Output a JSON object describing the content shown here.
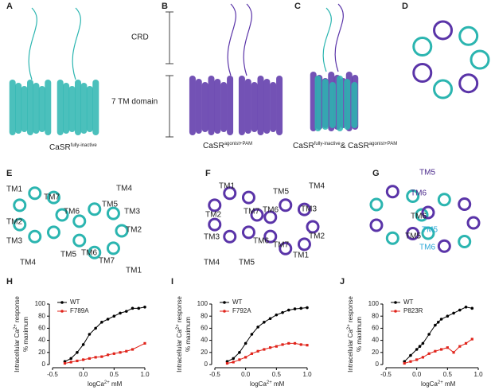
{
  "figure": {
    "panel_letters": [
      "A",
      "B",
      "C",
      "D",
      "E",
      "F",
      "G",
      "H",
      "I",
      "J"
    ],
    "panel_a": {
      "label_crd": "CRD",
      "label_tm": "7 TM domain",
      "caption": [
        "CaSR",
        "fully-inactive"
      ]
    },
    "panel_b": {
      "caption": [
        "CaSR",
        "agonist+PAM"
      ]
    },
    "panel_c": {
      "caption": [
        "CaSR",
        "fully-inactive",
        "& CaSR",
        "agonist+PAM"
      ]
    },
    "panel_e": {
      "labels": [
        "TM1",
        "TM7",
        "TM6",
        "TM5",
        "TM4",
        "TM3",
        "TM2",
        "TM3",
        "TM4",
        "TM5",
        "TM6",
        "TM2",
        "TM7",
        "TM1"
      ]
    },
    "panel_f": {
      "labels": [
        "TM1",
        "TM5",
        "TM4",
        "TM2",
        "TM7",
        "TM6",
        "TM3",
        "TM3",
        "TM6",
        "TM2",
        "TM7",
        "TM4",
        "TM5",
        "TM1"
      ]
    },
    "panel_g": {
      "labels": [
        "TM5",
        "TM6",
        "TM6",
        "TM5",
        "TM5",
        "TM6"
      ],
      "colors": [
        "#4b2a8c",
        "#4b2a8c",
        "#222222",
        "#222222",
        "#2aa7d6",
        "#2aa7d6"
      ]
    }
  },
  "chart_data": [
    {
      "type": "line",
      "ylabel": [
        "Intracellular Ca",
        "2+",
        " response",
        "% maximum"
      ],
      "xlabel": [
        "logCa",
        "2+",
        " mM"
      ],
      "xlim": [
        -0.5,
        1.0
      ],
      "xticks": [
        {
          "value": -0.5,
          "label": "-0.5"
        },
        {
          "value": 0,
          "label": "0.0"
        },
        {
          "value": 0.5,
          "label": "0.5"
        },
        {
          "value": 1,
          "label": "1.0"
        }
      ],
      "ylim": [
        0,
        100
      ],
      "yticks": [
        0,
        20,
        40,
        60,
        80,
        100
      ],
      "series": [
        {
          "name": "WT",
          "color": "#000000",
          "x": [
            -0.3,
            -0.2,
            -0.1,
            0,
            0.1,
            0.2,
            0.3,
            0.4,
            0.5,
            0.6,
            0.7,
            0.8,
            0.9,
            1.0
          ],
          "values": [
            5,
            10,
            20,
            33,
            50,
            60,
            70,
            75,
            80,
            85,
            88,
            93,
            93,
            95
          ]
        },
        {
          "name": "F789A",
          "color": "#e0241b",
          "x": [
            -0.3,
            -0.2,
            -0.1,
            0,
            0.1,
            0.2,
            0.3,
            0.4,
            0.5,
            0.6,
            0.7,
            0.8,
            1.0
          ],
          "values": [
            2,
            4,
            6,
            8,
            10,
            12,
            13,
            16,
            18,
            20,
            22,
            25,
            35
          ]
        }
      ]
    },
    {
      "type": "line",
      "ylabel": [
        "Intracellular Ca",
        "2+",
        " response",
        "% maximum"
      ],
      "xlabel": [
        "logCa",
        "2+",
        " mM"
      ],
      "xlim": [
        -0.5,
        1.0
      ],
      "xticks": [
        {
          "value": -0.5,
          "label": "-0.5"
        },
        {
          "value": 0,
          "label": "0.0"
        },
        {
          "value": 0.5,
          "label": "0.5"
        },
        {
          "value": 1,
          "label": "1.0"
        }
      ],
      "ylim": [
        0,
        100
      ],
      "yticks": [
        0,
        20,
        40,
        60,
        80,
        100
      ],
      "series": [
        {
          "name": "WT",
          "color": "#000000",
          "x": [
            -0.3,
            -0.2,
            -0.1,
            0,
            0.1,
            0.2,
            0.3,
            0.4,
            0.5,
            0.6,
            0.7,
            0.8,
            0.9,
            1.0
          ],
          "values": [
            5,
            10,
            20,
            35,
            50,
            62,
            70,
            76,
            82,
            86,
            90,
            92,
            93,
            94
          ]
        },
        {
          "name": "F792A",
          "color": "#e0241b",
          "x": [
            -0.3,
            -0.2,
            -0.1,
            0,
            0.1,
            0.2,
            0.3,
            0.4,
            0.5,
            0.6,
            0.7,
            0.8,
            0.9,
            1.0
          ],
          "values": [
            2,
            4,
            8,
            12,
            18,
            22,
            25,
            28,
            30,
            33,
            35,
            35,
            33,
            32
          ]
        }
      ]
    },
    {
      "type": "line",
      "ylabel": [
        "Intracellular Ca",
        "2+",
        " response",
        "% maximum"
      ],
      "xlabel": [
        "logCa",
        "2+",
        " mM"
      ],
      "xlim": [
        -0.5,
        1.0
      ],
      "xticks": [
        {
          "value": -0.5,
          "label": "-0.5"
        },
        {
          "value": 0,
          "label": "0.0"
        },
        {
          "value": 0.5,
          "label": "0.5"
        },
        {
          "value": 1,
          "label": "1.0"
        }
      ],
      "ylim": [
        0,
        100
      ],
      "yticks": [
        0,
        20,
        40,
        60,
        80,
        100
      ],
      "series": [
        {
          "name": "WT",
          "color": "#000000",
          "x": [
            -0.2,
            -0.1,
            0,
            0.05,
            0.1,
            0.2,
            0.3,
            0.35,
            0.4,
            0.5,
            0.6,
            0.7,
            0.8,
            0.9
          ],
          "values": [
            5,
            15,
            25,
            30,
            35,
            50,
            65,
            70,
            75,
            80,
            85,
            90,
            95,
            93
          ]
        },
        {
          "name": "P823R",
          "color": "#e0241b",
          "x": [
            -0.2,
            -0.1,
            0,
            0.1,
            0.2,
            0.3,
            0.4,
            0.5,
            0.6,
            0.7,
            0.8,
            0.9
          ],
          "values": [
            2,
            5,
            8,
            12,
            18,
            22,
            25,
            28,
            20,
            30,
            35,
            42
          ]
        }
      ]
    }
  ]
}
